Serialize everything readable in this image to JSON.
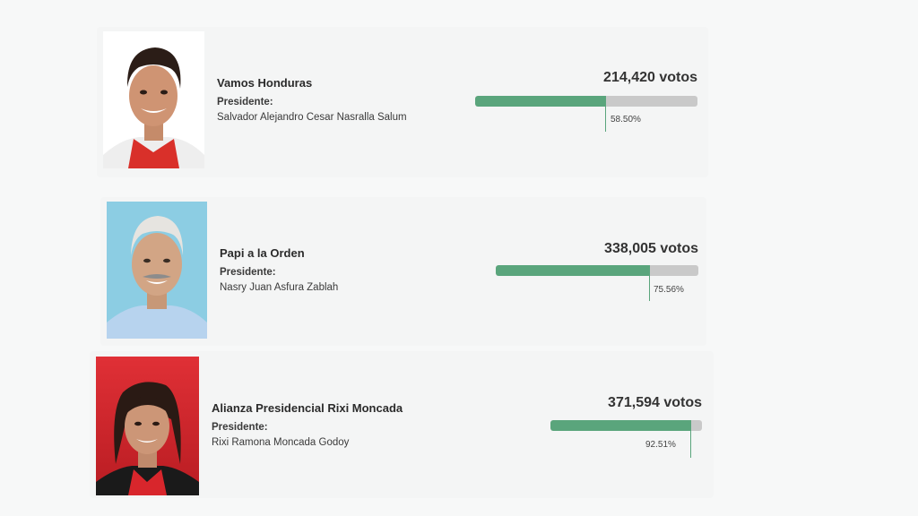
{
  "results": [
    {
      "party": "Vamos Honduras",
      "role_label": "Presidente:",
      "candidate": "Salvador Alejandro Cesar Nasralla Salum",
      "votes": "214,420 votos",
      "percent_label": "58.50%",
      "percent_value": 58.5,
      "photo_background": "#ffffff",
      "accent_color": "#e03a2f"
    },
    {
      "party": "Papi a la Orden",
      "role_label": "Presidente:",
      "candidate": "Nasry Juan Asfura Zablah",
      "votes": "338,005 votos",
      "percent_label": "75.56%",
      "percent_value": 75.56,
      "photo_background": "#8ccde3",
      "accent_color": "#b7d3ee"
    },
    {
      "party": "Alianza Presidencial Rixi Moncada",
      "role_label": "Presidente:",
      "candidate": "Rixi Ramona Moncada Godoy",
      "votes": "371,594 votos",
      "percent_label": "92.51%",
      "percent_value": 92.51,
      "photo_background": "#d8262c",
      "accent_color": "#d8262c"
    }
  ],
  "colors": {
    "bar_fill": "#5aa57c",
    "bar_track": "#c9c9c9",
    "page_background": "#f7f8f8"
  }
}
